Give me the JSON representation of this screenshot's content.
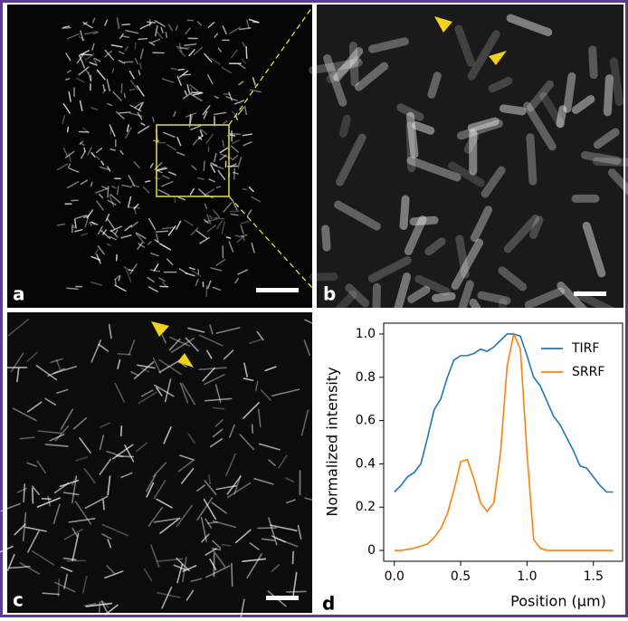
{
  "panel_labels": [
    "a",
    "b",
    "c",
    "d"
  ],
  "chart_data": {
    "type": "line",
    "x_label": "Position (μm)",
    "y_label": "Normalized intensity",
    "x": [
      0,
      0.05,
      0.1,
      0.15,
      0.2,
      0.25,
      0.3,
      0.35,
      0.4,
      0.45,
      0.5,
      0.55,
      0.6,
      0.65,
      0.7,
      0.75,
      0.8,
      0.85,
      0.9,
      0.95,
      1.0,
      1.05,
      1.1,
      1.15,
      1.2,
      1.25,
      1.3,
      1.35,
      1.4,
      1.45,
      1.5,
      1.55,
      1.6,
      1.65
    ],
    "series": [
      {
        "name": "TIRF",
        "color": "#1f77b4",
        "values": [
          0.27,
          0.3,
          0.34,
          0.36,
          0.4,
          0.52,
          0.65,
          0.7,
          0.8,
          0.88,
          0.9,
          0.9,
          0.91,
          0.93,
          0.92,
          0.94,
          0.97,
          1.0,
          1.0,
          0.99,
          0.9,
          0.8,
          0.76,
          0.69,
          0.62,
          0.58,
          0.52,
          0.46,
          0.39,
          0.38,
          0.34,
          0.3,
          0.27,
          0.27
        ]
      },
      {
        "name": "SRRF",
        "color": "#ff7f0e",
        "values": [
          0.0,
          0.0,
          0.005,
          0.01,
          0.02,
          0.03,
          0.06,
          0.1,
          0.17,
          0.28,
          0.41,
          0.42,
          0.33,
          0.22,
          0.18,
          0.22,
          0.45,
          0.85,
          1.0,
          0.93,
          0.45,
          0.05,
          0.01,
          0.0,
          0.0,
          0.0,
          0.0,
          0.0,
          0.0,
          0.0,
          0.0,
          0.0,
          0.0,
          0.0
        ]
      }
    ],
    "xlim": [
      -0.08,
      1.72
    ],
    "ylim": [
      -0.05,
      1.05
    ],
    "xticks": [
      {
        "value": 0,
        "label": "0.0"
      },
      {
        "value": 0.5,
        "label": "0.5"
      },
      {
        "value": 1,
        "label": "1.0"
      },
      {
        "value": 1.5,
        "label": "1.5"
      }
    ],
    "yticks": [
      0,
      0.2,
      0.4,
      0.6,
      0.8,
      {
        "value": 1,
        "label": "1.0"
      }
    ],
    "legend": "upper right",
    "grid": false
  }
}
